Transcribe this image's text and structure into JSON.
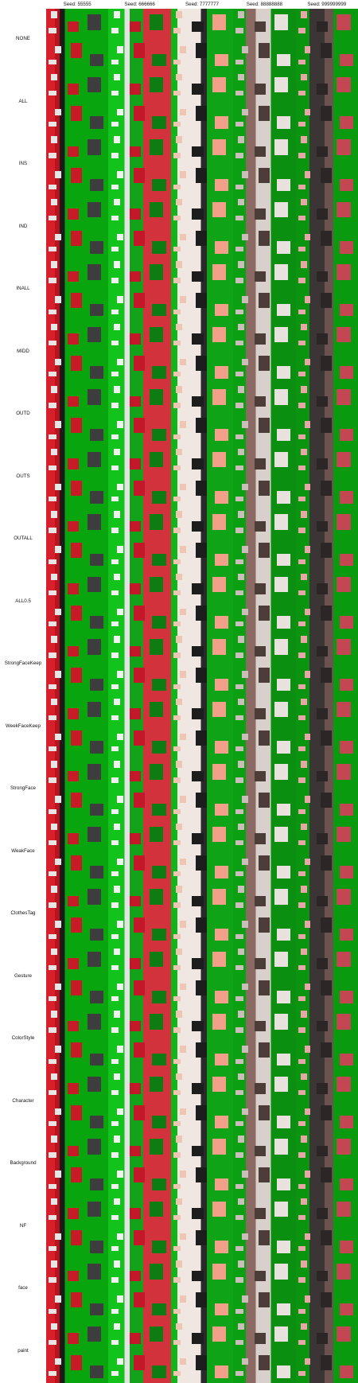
{
  "seeds": [
    "Seed: 55555",
    "Seed: 666666",
    "Seed: 7777777",
    "Seed: 88888888",
    "Seed: 999999999"
  ],
  "rows": [
    "NONE",
    "ALL",
    "INS",
    "IND",
    "INALL",
    "MIDD",
    "OUTD",
    "OUTS",
    "OUTALL",
    "ALL0.5",
    "StrongFaceKeep",
    "WeekFaceKeep",
    "StrongFace",
    "WeakFace",
    "ClothesTag",
    "Gesture",
    "ColorStyle",
    "Character",
    "Background",
    "NF",
    "face",
    "paint"
  ]
}
